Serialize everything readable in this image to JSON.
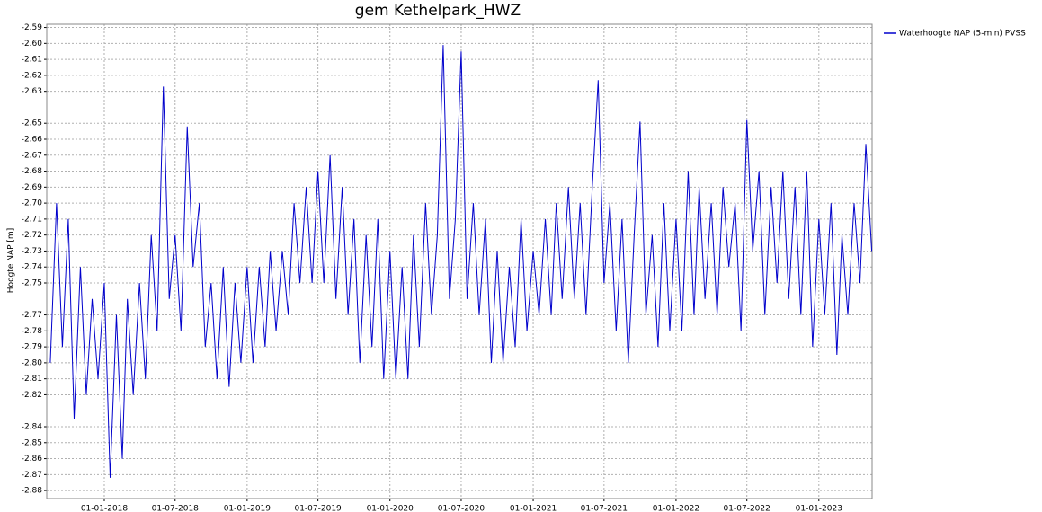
{
  "chart_data": {
    "type": "line",
    "title": "gem Kethelpark_HWZ",
    "y_label": "Hoogte NAP [m]",
    "x": [
      "2017-08-16",
      "2017-09-01",
      "2017-09-16",
      "2017-10-01",
      "2017-10-16",
      "2017-11-01",
      "2017-11-16",
      "2017-12-01",
      "2017-12-16",
      "2018-01-01",
      "2018-01-16",
      "2018-02-01",
      "2018-02-16",
      "2018-03-01",
      "2018-03-16",
      "2018-04-01",
      "2018-04-16",
      "2018-05-01",
      "2018-05-16",
      "2018-06-01",
      "2018-06-16",
      "2018-07-01",
      "2018-07-16",
      "2018-08-01",
      "2018-08-16",
      "2018-09-01",
      "2018-09-16",
      "2018-10-01",
      "2018-10-16",
      "2018-11-01",
      "2018-11-16",
      "2018-12-01",
      "2018-12-16",
      "2019-01-01",
      "2019-01-16",
      "2019-02-01",
      "2019-02-16",
      "2019-03-01",
      "2019-03-16",
      "2019-04-01",
      "2019-04-16",
      "2019-05-01",
      "2019-05-16",
      "2019-06-01",
      "2019-06-16",
      "2019-07-01",
      "2019-07-16",
      "2019-08-01",
      "2019-08-16",
      "2019-09-01",
      "2019-09-16",
      "2019-10-01",
      "2019-10-16",
      "2019-11-01",
      "2019-11-16",
      "2019-12-01",
      "2019-12-16",
      "2020-01-01",
      "2020-01-16",
      "2020-02-01",
      "2020-02-16",
      "2020-03-01",
      "2020-03-16",
      "2020-04-01",
      "2020-04-16",
      "2020-05-01",
      "2020-05-16",
      "2020-06-01",
      "2020-06-16",
      "2020-07-01",
      "2020-07-16",
      "2020-08-01",
      "2020-08-16",
      "2020-09-01",
      "2020-09-16",
      "2020-10-01",
      "2020-10-16",
      "2020-11-01",
      "2020-11-16",
      "2020-12-01",
      "2020-12-16",
      "2021-01-01",
      "2021-01-16",
      "2021-02-01",
      "2021-02-16",
      "2021-03-01",
      "2021-03-16",
      "2021-04-01",
      "2021-04-16",
      "2021-05-01",
      "2021-05-16",
      "2021-06-01",
      "2021-06-16",
      "2021-07-01",
      "2021-07-16",
      "2021-08-01",
      "2021-08-16",
      "2021-09-01",
      "2021-09-16",
      "2021-10-01",
      "2021-10-16",
      "2021-11-01",
      "2021-11-16",
      "2021-12-01",
      "2021-12-16",
      "2022-01-01",
      "2022-01-16",
      "2022-02-01",
      "2022-02-16",
      "2022-03-01",
      "2022-03-16",
      "2022-04-01",
      "2022-04-16",
      "2022-05-01",
      "2022-05-16",
      "2022-06-01",
      "2022-06-16",
      "2022-07-01",
      "2022-07-16",
      "2022-08-01",
      "2022-08-16",
      "2022-09-01",
      "2022-09-16",
      "2022-10-01",
      "2022-10-16",
      "2022-11-01",
      "2022-11-16",
      "2022-12-01",
      "2022-12-16",
      "2023-01-01",
      "2023-01-16",
      "2023-02-01",
      "2023-02-16",
      "2023-03-01",
      "2023-03-16",
      "2023-04-01",
      "2023-04-16",
      "2023-05-01",
      "2023-05-16"
    ],
    "series": [
      {
        "name": "Waterhoogte NAP (5-min) PVSS",
        "color": "#0000cc",
        "values": [
          -2.8,
          -2.7,
          -2.79,
          -2.71,
          -2.835,
          -2.74,
          -2.82,
          -2.76,
          -2.81,
          -2.75,
          -2.872,
          -2.77,
          -2.86,
          -2.76,
          -2.82,
          -2.75,
          -2.81,
          -2.72,
          -2.78,
          -2.627,
          -2.76,
          -2.72,
          -2.78,
          -2.652,
          -2.74,
          -2.7,
          -2.79,
          -2.75,
          -2.81,
          -2.74,
          -2.815,
          -2.75,
          -2.8,
          -2.74,
          -2.8,
          -2.74,
          -2.79,
          -2.73,
          -2.78,
          -2.73,
          -2.77,
          -2.7,
          -2.75,
          -2.69,
          -2.75,
          -2.68,
          -2.75,
          -2.67,
          -2.76,
          -2.69,
          -2.77,
          -2.71,
          -2.8,
          -2.72,
          -2.79,
          -2.71,
          -2.81,
          -2.73,
          -2.81,
          -2.74,
          -2.81,
          -2.72,
          -2.79,
          -2.7,
          -2.77,
          -2.72,
          -2.601,
          -2.76,
          -2.71,
          -2.605,
          -2.76,
          -2.7,
          -2.77,
          -2.71,
          -2.8,
          -2.73,
          -2.8,
          -2.74,
          -2.79,
          -2.71,
          -2.78,
          -2.73,
          -2.77,
          -2.71,
          -2.77,
          -2.7,
          -2.76,
          -2.69,
          -2.76,
          -2.7,
          -2.77,
          -2.69,
          -2.623,
          -2.75,
          -2.7,
          -2.78,
          -2.71,
          -2.8,
          -2.72,
          -2.649,
          -2.77,
          -2.72,
          -2.79,
          -2.7,
          -2.78,
          -2.71,
          -2.78,
          -2.68,
          -2.77,
          -2.69,
          -2.76,
          -2.7,
          -2.77,
          -2.69,
          -2.74,
          -2.7,
          -2.78,
          -2.648,
          -2.73,
          -2.68,
          -2.77,
          -2.69,
          -2.75,
          -2.68,
          -2.76,
          -2.69,
          -2.77,
          -2.68,
          -2.79,
          -2.71,
          -2.77,
          -2.7,
          -2.795,
          -2.72,
          -2.77,
          -2.7,
          -2.75,
          -2.663,
          -2.73
        ]
      }
    ],
    "xlim": [
      "2017-08-07",
      "2023-05-17"
    ],
    "xticks": [
      {
        "value": "2018-01-01",
        "label": "01-01-2018"
      },
      {
        "value": "2018-07-01",
        "label": "01-07-2018"
      },
      {
        "value": "2019-01-01",
        "label": "01-01-2019"
      },
      {
        "value": "2019-07-01",
        "label": "01-07-2019"
      },
      {
        "value": "2020-01-01",
        "label": "01-01-2020"
      },
      {
        "value": "2020-07-01",
        "label": "01-07-2020"
      },
      {
        "value": "2021-01-01",
        "label": "01-01-2021"
      },
      {
        "value": "2021-07-01",
        "label": "01-07-2021"
      },
      {
        "value": "2022-01-01",
        "label": "01-01-2022"
      },
      {
        "value": "2022-07-01",
        "label": "01-07-2022"
      },
      {
        "value": "2023-01-01",
        "label": "01-01-2023"
      }
    ],
    "ylim": [
      -2.885,
      -2.588
    ],
    "yticks": [
      {
        "value": -2.59,
        "label": "-2.59"
      },
      {
        "value": -2.6,
        "label": "-2.60"
      },
      {
        "value": -2.61,
        "label": "-2.61"
      },
      {
        "value": -2.62,
        "label": "-2.62"
      },
      {
        "value": -2.63,
        "label": "-2.63"
      },
      {
        "value": -2.65,
        "label": "-2.65"
      },
      {
        "value": -2.66,
        "label": "-2.66"
      },
      {
        "value": -2.67,
        "label": "-2.67"
      },
      {
        "value": -2.68,
        "label": "-2.68"
      },
      {
        "value": -2.69,
        "label": "-2.69"
      },
      {
        "value": -2.7,
        "label": "-2.70"
      },
      {
        "value": -2.71,
        "label": "-2.71"
      },
      {
        "value": -2.72,
        "label": "-2.72"
      },
      {
        "value": -2.73,
        "label": "-2.73"
      },
      {
        "value": -2.74,
        "label": "-2.74"
      },
      {
        "value": -2.75,
        "label": "-2.75"
      },
      {
        "value": -2.77,
        "label": "-2.77"
      },
      {
        "value": -2.78,
        "label": "-2.78"
      },
      {
        "value": -2.79,
        "label": "-2.79"
      },
      {
        "value": -2.8,
        "label": "-2.80"
      },
      {
        "value": -2.81,
        "label": "-2.81"
      },
      {
        "value": -2.82,
        "label": "-2.82"
      },
      {
        "value": -2.84,
        "label": "-2.84"
      },
      {
        "value": -2.85,
        "label": "-2.85"
      },
      {
        "value": -2.86,
        "label": "-2.86"
      },
      {
        "value": -2.87,
        "label": "-2.87"
      },
      {
        "value": -2.88,
        "label": "-2.88"
      }
    ],
    "grid": true,
    "legend": "right"
  }
}
